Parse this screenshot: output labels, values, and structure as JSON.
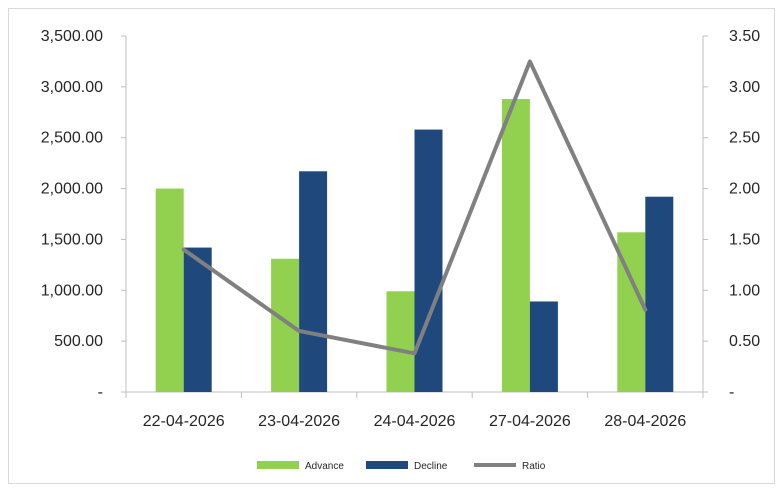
{
  "chart_data": {
    "type": "bar",
    "categories": [
      "22-04-2026",
      "23-04-2026",
      "24-04-2026",
      "27-04-2026",
      "28-04-2026"
    ],
    "series": [
      {
        "name": "Advance",
        "type": "bar",
        "axis": "left",
        "color": "#92d050",
        "values": [
          2000,
          1310,
          990,
          2880,
          1570
        ]
      },
      {
        "name": "Decline",
        "type": "bar",
        "axis": "left",
        "color": "#1f497d",
        "values": [
          1420,
          2170,
          2580,
          890,
          1920
        ]
      },
      {
        "name": "Ratio",
        "type": "line",
        "axis": "right",
        "color": "#808080",
        "values": [
          1.4,
          0.6,
          0.38,
          3.25,
          0.81
        ]
      }
    ],
    "left_axis": {
      "ylim": [
        0,
        3500
      ],
      "ticks": [
        0,
        500,
        1000,
        1500,
        2000,
        2500,
        3000,
        3500
      ],
      "tick_labels": [
        "-",
        "500.00",
        "1,000.00",
        "1,500.00",
        "2,000.00",
        "2,500.00",
        "3,000.00",
        "3,500.00"
      ]
    },
    "right_axis": {
      "ylim": [
        0,
        3.5
      ],
      "ticks": [
        0,
        0.5,
        1,
        1.5,
        2,
        2.5,
        3,
        3.5
      ],
      "tick_labels": [
        "-",
        "0.50",
        "1.00",
        "1.50",
        "2.00",
        "2.50",
        "3.00",
        "3.50"
      ]
    },
    "legend": {
      "placement": "bottom-center",
      "entries": [
        "Advance",
        "Decline",
        "Ratio"
      ]
    },
    "grid": false,
    "title": "",
    "xlabel": "",
    "ylabel": ""
  }
}
